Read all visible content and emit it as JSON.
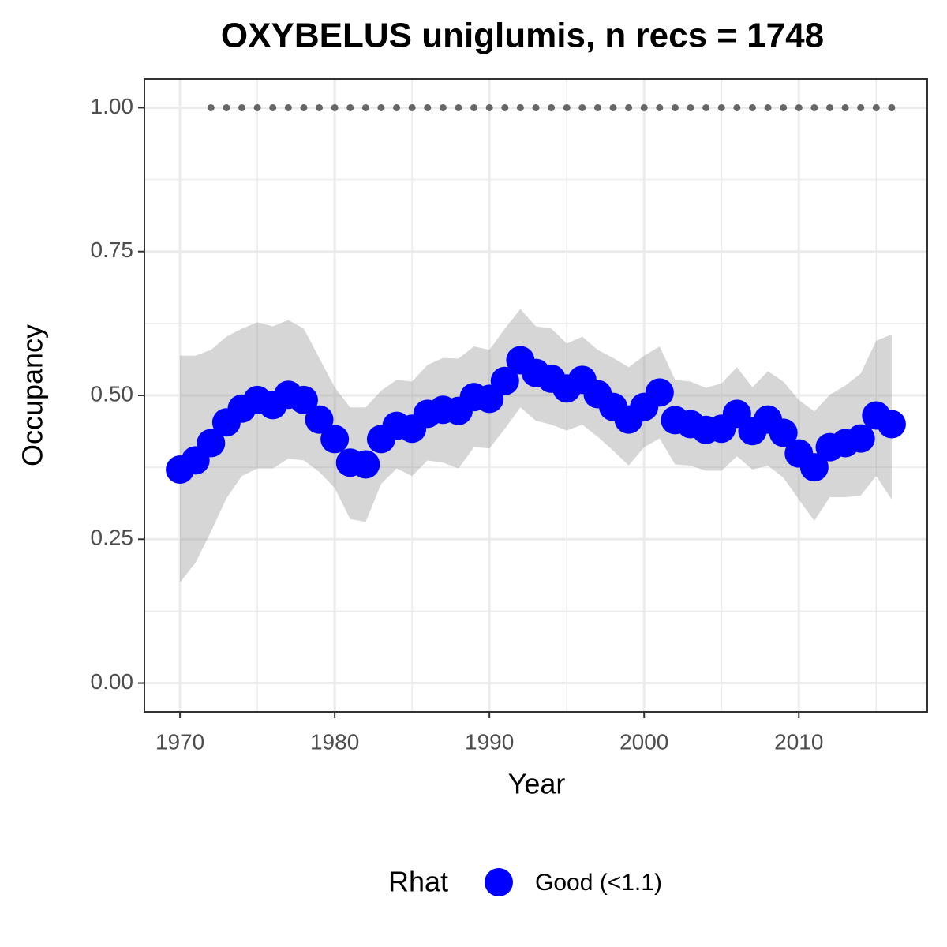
{
  "chart_data": {
    "type": "scatter",
    "title": "OXYBELUS uniglumis, n recs = 1748",
    "x_label": "Year",
    "y_label": "Occupancy",
    "x": [
      1970,
      1971,
      1972,
      1973,
      1974,
      1975,
      1976,
      1977,
      1978,
      1979,
      1980,
      1981,
      1982,
      1983,
      1984,
      1985,
      1986,
      1987,
      1988,
      1989,
      1990,
      1991,
      1992,
      1993,
      1994,
      1995,
      1996,
      1997,
      1998,
      1999,
      2000,
      2001,
      2002,
      2003,
      2004,
      2005,
      2006,
      2007,
      2008,
      2009,
      2010,
      2011,
      2012,
      2013,
      2014,
      2015,
      2016
    ],
    "series": [
      {
        "name": "Good (<1.1)",
        "color": "#0000ff",
        "values": [
          0.371,
          0.387,
          0.417,
          0.453,
          0.477,
          0.492,
          0.483,
          0.501,
          0.492,
          0.458,
          0.424,
          0.383,
          0.38,
          0.424,
          0.447,
          0.442,
          0.468,
          0.475,
          0.473,
          0.497,
          0.494,
          0.525,
          0.561,
          0.539,
          0.529,
          0.512,
          0.527,
          0.502,
          0.48,
          0.458,
          0.48,
          0.505,
          0.457,
          0.45,
          0.44,
          0.442,
          0.468,
          0.438,
          0.458,
          0.435,
          0.399,
          0.375,
          0.41,
          0.417,
          0.425,
          0.465,
          0.45
        ],
        "upper": [
          0.569,
          0.569,
          0.579,
          0.602,
          0.616,
          0.627,
          0.62,
          0.631,
          0.616,
          0.565,
          0.514,
          0.479,
          0.479,
          0.508,
          0.527,
          0.524,
          0.553,
          0.565,
          0.564,
          0.585,
          0.579,
          0.616,
          0.65,
          0.62,
          0.616,
          0.59,
          0.602,
          0.579,
          0.565,
          0.549,
          0.569,
          0.585,
          0.527,
          0.524,
          0.513,
          0.521,
          0.549,
          0.514,
          0.542,
          0.524,
          0.492,
          0.472,
          0.501,
          0.517,
          0.538,
          0.595,
          0.606
        ],
        "lower": [
          0.175,
          0.209,
          0.263,
          0.321,
          0.36,
          0.373,
          0.373,
          0.39,
          0.387,
          0.367,
          0.339,
          0.285,
          0.28,
          0.346,
          0.373,
          0.36,
          0.387,
          0.383,
          0.373,
          0.41,
          0.408,
          0.442,
          0.479,
          0.456,
          0.449,
          0.439,
          0.449,
          0.428,
          0.404,
          0.378,
          0.41,
          0.425,
          0.38,
          0.378,
          0.369,
          0.369,
          0.394,
          0.371,
          0.378,
          0.357,
          0.319,
          0.282,
          0.323,
          0.323,
          0.326,
          0.36,
          0.319
        ]
      }
    ],
    "reference_points": {
      "color": "#666666",
      "values": [
        null,
        null,
        1,
        1,
        1,
        1,
        1,
        1,
        1,
        1,
        1,
        1,
        1,
        1,
        1,
        1,
        1,
        1,
        1,
        1,
        1,
        1,
        1,
        1,
        1,
        1,
        1,
        1,
        1,
        1,
        1,
        1,
        1,
        1,
        1,
        1,
        1,
        1,
        1,
        1,
        1,
        1,
        1,
        1,
        1,
        1,
        1
      ]
    },
    "band_color": "#999999",
    "xlim": [
      1967.7,
      2018.3
    ],
    "xticks": [
      1970,
      1980,
      1990,
      2000,
      2010
    ],
    "x_minor_ticks": [
      1975,
      1985,
      1995,
      2005,
      2015
    ],
    "ylim": [
      -0.05,
      1.05
    ],
    "yticks": [
      {
        "value": 0,
        "label": "0.00"
      },
      {
        "value": 0.25,
        "label": "0.25"
      },
      {
        "value": 0.5,
        "label": "0.50"
      },
      {
        "value": 0.75,
        "label": "0.75"
      },
      {
        "value": 1,
        "label": "1.00"
      }
    ],
    "y_minor_ticks": [
      0.125,
      0.375,
      0.625,
      0.875
    ],
    "grid": true,
    "legend_title": "Rhat",
    "legend_position": "bottom"
  }
}
